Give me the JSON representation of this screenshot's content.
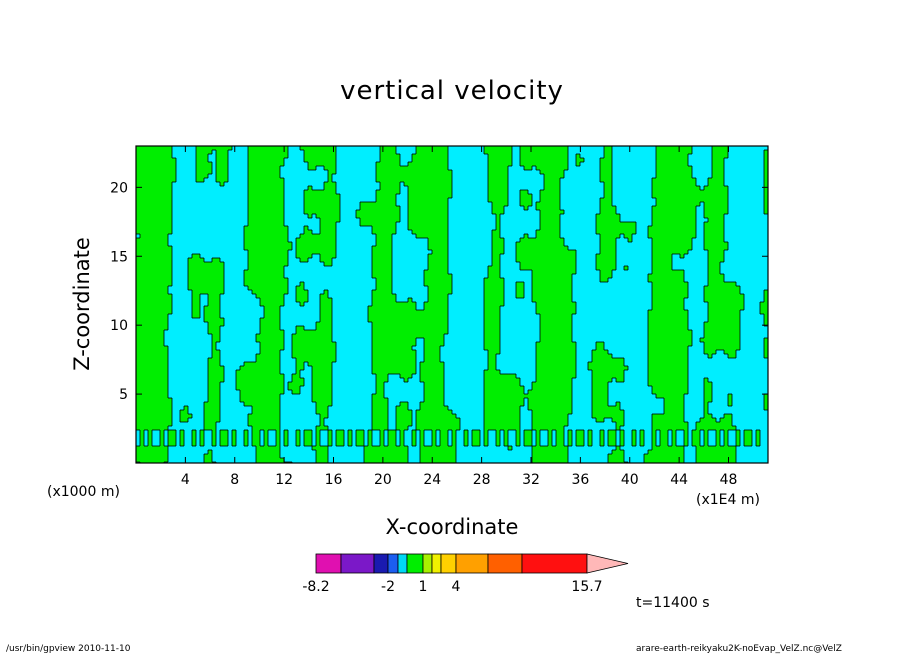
{
  "chart_data": {
    "type": "heatmap",
    "title": "vertical velocity",
    "xlabel": "X-coordinate",
    "ylabel": "Z-coordinate",
    "x_unit": "(x1E4 m)",
    "y_unit": "(x1000 m)",
    "xlim": [
      0,
      51.2
    ],
    "ylim": [
      0,
      23
    ],
    "x_ticks": [
      4,
      8,
      12,
      16,
      20,
      24,
      28,
      32,
      36,
      40,
      44,
      48
    ],
    "y_ticks": [
      5,
      10,
      15,
      20
    ],
    "colorbar": {
      "labels": [
        "-8.2",
        "-2",
        "1",
        "4",
        "15.7"
      ],
      "colors": [
        "#e010b0",
        "#7b18c8",
        "#1a1ab0",
        "#1c5ef0",
        "#00d8f5",
        "#00ee00",
        "#a8f000",
        "#f0f000",
        "#ffd000",
        "#ffa000",
        "#ff6000",
        "#ff1010",
        "#ff8080",
        "#ffb8b8"
      ]
    },
    "time": "t=11400 s"
  },
  "footer": {
    "left": "/usr/bin/gpview   2010-11-10",
    "right": "arare-earth-reikyaku2K-noEvap_VelZ.nc@VelZ"
  },
  "colors": {
    "cyan": "#00eeff",
    "green": "#00ee00"
  }
}
